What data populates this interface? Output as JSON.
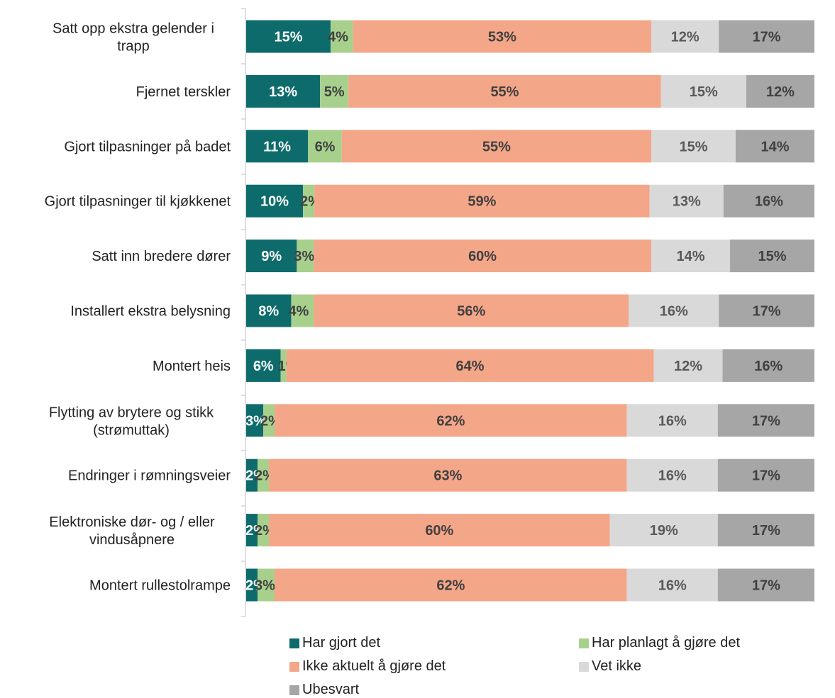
{
  "chart_data": {
    "type": "bar",
    "orientation": "horizontal",
    "stacked": true,
    "categories": [
      "Satt opp ekstra gelender i trapp",
      "Fjernet terskler",
      "Gjort tilpasninger på badet",
      "Gjort tilpasninger til kjøkkenet",
      "Satt inn bredere dører",
      "Installert ekstra belysning",
      "Montert heis",
      "Flytting av brytere og stikk (strømuttak)",
      "Endringer i rømningsveier",
      "Elektroniske dør- og / eller vindusåpnere",
      "Montert rullestolrampe"
    ],
    "series": [
      {
        "name": "Har gjort det",
        "color": "#0e6b6b",
        "label_color": "#ffffff",
        "values": [
          15,
          13,
          11,
          10,
          9,
          8,
          6,
          3,
          2,
          2,
          2
        ]
      },
      {
        "name": "Har planlagt å gjøre det",
        "color": "#a8d08d",
        "label_color": "#404040",
        "values": [
          4,
          5,
          6,
          2,
          3,
          4,
          1,
          2,
          2,
          2,
          3
        ]
      },
      {
        "name": "Ikke aktuelt å gjøre det",
        "color": "#f4a688",
        "label_color": "#404040",
        "values": [
          53,
          55,
          55,
          59,
          60,
          56,
          64,
          62,
          63,
          60,
          62
        ]
      },
      {
        "name": "Vet ikke",
        "color": "#d9d9d9",
        "label_color": "#595959",
        "values": [
          12,
          15,
          15,
          13,
          14,
          16,
          12,
          16,
          16,
          19,
          16
        ]
      },
      {
        "name": "Ubesvart",
        "color": "#a6a6a6",
        "label_color": "#404040",
        "values": [
          17,
          12,
          14,
          16,
          15,
          17,
          16,
          17,
          17,
          17,
          17
        ]
      }
    ],
    "value_suffix": "%",
    "legend_position": "bottom",
    "grid": false
  }
}
